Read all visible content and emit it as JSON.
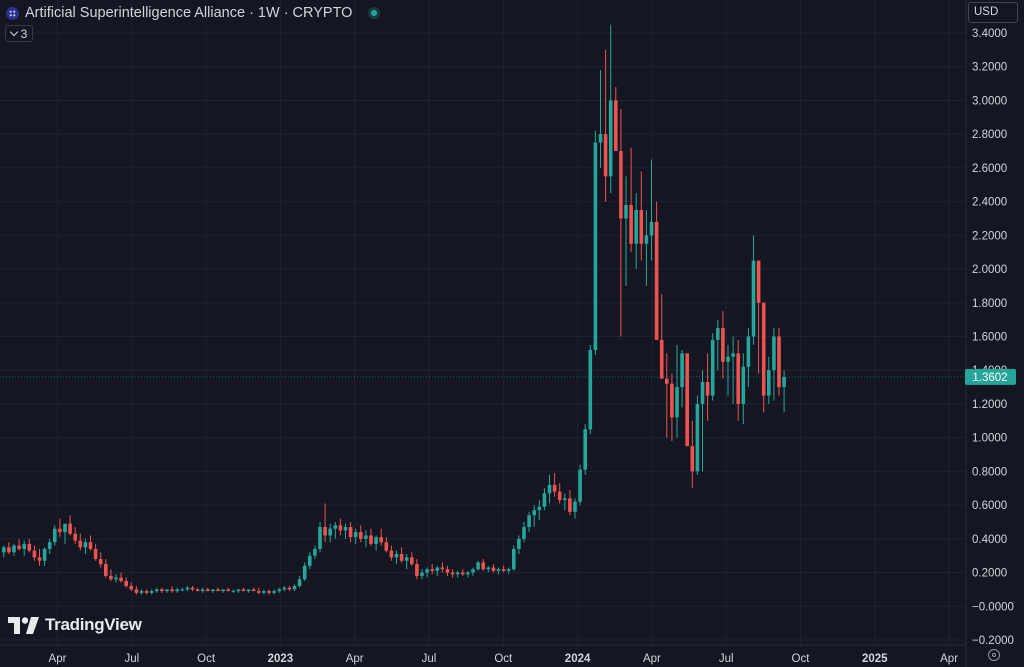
{
  "header": {
    "title": "Artificial Superintelligence Alliance · 1W · CRYPTO",
    "indicator_count": "3",
    "currency": "USD"
  },
  "branding": {
    "name": "TradingView"
  },
  "colors": {
    "up": "#26a69a",
    "down": "#ef5350",
    "background": "#141722",
    "grid": "#1e2230"
  },
  "chart_data": {
    "type": "candlestick",
    "timeframe": "1W",
    "ylim": [
      -0.2,
      3.4
    ],
    "y_ticks": [
      "3.4000",
      "3.2000",
      "3.0000",
      "2.8000",
      "2.6000",
      "2.4000",
      "2.2000",
      "2.0000",
      "1.8000",
      "1.6000",
      "1.4000",
      "1.2000",
      "1.0000",
      "0.8000",
      "0.6000",
      "0.4000",
      "0.2000",
      "−0.0000",
      "−0.2000"
    ],
    "x_ticks": [
      "Apr",
      "Jul",
      "Oct",
      "2023",
      "Apr",
      "Jul",
      "Oct",
      "2024",
      "Apr",
      "Jul",
      "Oct",
      "2025",
      "Apr"
    ],
    "last_price": "1.3602",
    "candles": [
      [
        0.32,
        0.36,
        0.29,
        0.35
      ],
      [
        0.35,
        0.38,
        0.31,
        0.32
      ],
      [
        0.32,
        0.37,
        0.3,
        0.36
      ],
      [
        0.36,
        0.4,
        0.33,
        0.34
      ],
      [
        0.34,
        0.39,
        0.3,
        0.37
      ],
      [
        0.37,
        0.4,
        0.32,
        0.33
      ],
      [
        0.33,
        0.36,
        0.27,
        0.29
      ],
      [
        0.29,
        0.34,
        0.24,
        0.27
      ],
      [
        0.27,
        0.35,
        0.24,
        0.34
      ],
      [
        0.34,
        0.4,
        0.31,
        0.38
      ],
      [
        0.38,
        0.48,
        0.36,
        0.46
      ],
      [
        0.46,
        0.52,
        0.41,
        0.44
      ],
      [
        0.44,
        0.48,
        0.37,
        0.49
      ],
      [
        0.49,
        0.54,
        0.42,
        0.43
      ],
      [
        0.43,
        0.47,
        0.37,
        0.39
      ],
      [
        0.39,
        0.43,
        0.33,
        0.35
      ],
      [
        0.35,
        0.4,
        0.31,
        0.38
      ],
      [
        0.38,
        0.42,
        0.33,
        0.34
      ],
      [
        0.34,
        0.37,
        0.27,
        0.28
      ],
      [
        0.28,
        0.32,
        0.23,
        0.25
      ],
      [
        0.25,
        0.28,
        0.17,
        0.18
      ],
      [
        0.18,
        0.22,
        0.15,
        0.16
      ],
      [
        0.16,
        0.19,
        0.14,
        0.17
      ],
      [
        0.17,
        0.2,
        0.14,
        0.15
      ],
      [
        0.15,
        0.17,
        0.11,
        0.12
      ],
      [
        0.12,
        0.14,
        0.09,
        0.1
      ],
      [
        0.1,
        0.12,
        0.07,
        0.08
      ],
      [
        0.08,
        0.1,
        0.07,
        0.09
      ],
      [
        0.09,
        0.1,
        0.07,
        0.08
      ],
      [
        0.08,
        0.1,
        0.07,
        0.09
      ],
      [
        0.09,
        0.11,
        0.08,
        0.1
      ],
      [
        0.1,
        0.11,
        0.08,
        0.09
      ],
      [
        0.09,
        0.1,
        0.08,
        0.1
      ],
      [
        0.1,
        0.12,
        0.08,
        0.09
      ],
      [
        0.09,
        0.11,
        0.08,
        0.1
      ],
      [
        0.1,
        0.11,
        0.09,
        0.1
      ],
      [
        0.1,
        0.12,
        0.09,
        0.11
      ],
      [
        0.11,
        0.12,
        0.09,
        0.1
      ],
      [
        0.1,
        0.11,
        0.09,
        0.09
      ],
      [
        0.09,
        0.11,
        0.08,
        0.1
      ],
      [
        0.1,
        0.11,
        0.09,
        0.09
      ],
      [
        0.09,
        0.1,
        0.08,
        0.1
      ],
      [
        0.1,
        0.11,
        0.09,
        0.09
      ],
      [
        0.09,
        0.1,
        0.08,
        0.1
      ],
      [
        0.1,
        0.11,
        0.09,
        0.09
      ],
      [
        0.09,
        0.1,
        0.08,
        0.09
      ],
      [
        0.09,
        0.1,
        0.08,
        0.1
      ],
      [
        0.1,
        0.11,
        0.09,
        0.09
      ],
      [
        0.09,
        0.1,
        0.08,
        0.1
      ],
      [
        0.1,
        0.11,
        0.09,
        0.09
      ],
      [
        0.09,
        0.11,
        0.07,
        0.08
      ],
      [
        0.08,
        0.1,
        0.07,
        0.09
      ],
      [
        0.09,
        0.1,
        0.07,
        0.08
      ],
      [
        0.08,
        0.1,
        0.07,
        0.09
      ],
      [
        0.09,
        0.11,
        0.08,
        0.1
      ],
      [
        0.1,
        0.12,
        0.09,
        0.11
      ],
      [
        0.11,
        0.12,
        0.09,
        0.1
      ],
      [
        0.1,
        0.13,
        0.09,
        0.12
      ],
      [
        0.12,
        0.18,
        0.11,
        0.16
      ],
      [
        0.16,
        0.26,
        0.15,
        0.24
      ],
      [
        0.24,
        0.32,
        0.22,
        0.3
      ],
      [
        0.3,
        0.36,
        0.28,
        0.34
      ],
      [
        0.34,
        0.5,
        0.32,
        0.47
      ],
      [
        0.47,
        0.61,
        0.38,
        0.42
      ],
      [
        0.42,
        0.49,
        0.38,
        0.46
      ],
      [
        0.46,
        0.5,
        0.4,
        0.48
      ],
      [
        0.48,
        0.52,
        0.42,
        0.45
      ],
      [
        0.45,
        0.49,
        0.4,
        0.47
      ],
      [
        0.47,
        0.5,
        0.38,
        0.41
      ],
      [
        0.41,
        0.46,
        0.37,
        0.44
      ],
      [
        0.44,
        0.48,
        0.38,
        0.4
      ],
      [
        0.4,
        0.45,
        0.35,
        0.42
      ],
      [
        0.42,
        0.46,
        0.36,
        0.37
      ],
      [
        0.37,
        0.42,
        0.33,
        0.41
      ],
      [
        0.41,
        0.46,
        0.36,
        0.38
      ],
      [
        0.38,
        0.41,
        0.32,
        0.33
      ],
      [
        0.33,
        0.36,
        0.27,
        0.29
      ],
      [
        0.29,
        0.33,
        0.25,
        0.31
      ],
      [
        0.31,
        0.35,
        0.26,
        0.27
      ],
      [
        0.27,
        0.31,
        0.22,
        0.29
      ],
      [
        0.29,
        0.32,
        0.24,
        0.25
      ],
      [
        0.25,
        0.28,
        0.16,
        0.18
      ],
      [
        0.18,
        0.22,
        0.16,
        0.2
      ],
      [
        0.2,
        0.23,
        0.17,
        0.22
      ],
      [
        0.22,
        0.25,
        0.19,
        0.21
      ],
      [
        0.21,
        0.24,
        0.18,
        0.23
      ],
      [
        0.23,
        0.26,
        0.2,
        0.22
      ],
      [
        0.22,
        0.24,
        0.18,
        0.2
      ],
      [
        0.2,
        0.22,
        0.17,
        0.19
      ],
      [
        0.19,
        0.21,
        0.17,
        0.2
      ],
      [
        0.2,
        0.22,
        0.18,
        0.19
      ],
      [
        0.19,
        0.21,
        0.17,
        0.2
      ],
      [
        0.2,
        0.23,
        0.18,
        0.22
      ],
      [
        0.22,
        0.27,
        0.21,
        0.26
      ],
      [
        0.26,
        0.28,
        0.21,
        0.22
      ],
      [
        0.22,
        0.24,
        0.2,
        0.23
      ],
      [
        0.23,
        0.25,
        0.2,
        0.21
      ],
      [
        0.21,
        0.23,
        0.19,
        0.22
      ],
      [
        0.22,
        0.24,
        0.2,
        0.21
      ],
      [
        0.21,
        0.23,
        0.19,
        0.22
      ],
      [
        0.22,
        0.36,
        0.21,
        0.34
      ],
      [
        0.34,
        0.42,
        0.31,
        0.4
      ],
      [
        0.4,
        0.5,
        0.38,
        0.47
      ],
      [
        0.47,
        0.56,
        0.44,
        0.54
      ],
      [
        0.54,
        0.6,
        0.47,
        0.57
      ],
      [
        0.57,
        0.63,
        0.51,
        0.59
      ],
      [
        0.59,
        0.7,
        0.57,
        0.67
      ],
      [
        0.67,
        0.78,
        0.61,
        0.72
      ],
      [
        0.72,
        0.79,
        0.65,
        0.68
      ],
      [
        0.68,
        0.73,
        0.61,
        0.63
      ],
      [
        0.63,
        0.67,
        0.57,
        0.64
      ],
      [
        0.64,
        0.69,
        0.54,
        0.56
      ],
      [
        0.56,
        0.64,
        0.52,
        0.62
      ],
      [
        0.62,
        0.84,
        0.6,
        0.81
      ],
      [
        0.81,
        1.08,
        0.78,
        1.05
      ],
      [
        1.05,
        1.55,
        1.02,
        1.52
      ],
      [
        1.52,
        2.82,
        1.49,
        2.75
      ],
      [
        2.75,
        3.18,
        2.6,
        2.8
      ],
      [
        2.8,
        3.3,
        2.4,
        2.55
      ],
      [
        2.55,
        3.45,
        2.45,
        3.0
      ],
      [
        3.0,
        3.08,
        2.7,
        2.7
      ],
      [
        2.7,
        2.95,
        1.6,
        2.3
      ],
      [
        2.3,
        2.55,
        1.9,
        2.38
      ],
      [
        2.38,
        2.72,
        2.1,
        2.15
      ],
      [
        2.15,
        2.45,
        2.0,
        2.35
      ],
      [
        2.35,
        2.58,
        2.05,
        2.15
      ],
      [
        2.15,
        2.35,
        1.9,
        2.2
      ],
      [
        2.2,
        2.65,
        2.05,
        2.28
      ],
      [
        2.28,
        2.4,
        1.58,
        1.58
      ],
      [
        1.58,
        1.85,
        1.38,
        1.35
      ],
      [
        1.35,
        1.5,
        1.0,
        1.32
      ],
      [
        1.32,
        1.38,
        0.98,
        1.12
      ],
      [
        1.12,
        1.55,
        1.0,
        1.3
      ],
      [
        1.3,
        1.52,
        1.18,
        1.5
      ],
      [
        1.5,
        1.5,
        0.95,
        0.95
      ],
      [
        0.95,
        1.1,
        0.7,
        0.8
      ],
      [
        0.8,
        1.25,
        0.78,
        1.2
      ],
      [
        1.2,
        1.4,
        0.8,
        1.33
      ],
      [
        1.33,
        1.5,
        1.1,
        1.25
      ],
      [
        1.25,
        1.62,
        1.22,
        1.58
      ],
      [
        1.58,
        1.7,
        1.4,
        1.65
      ],
      [
        1.65,
        1.75,
        1.35,
        1.45
      ],
      [
        1.45,
        1.55,
        1.25,
        1.48
      ],
      [
        1.48,
        1.6,
        1.2,
        1.5
      ],
      [
        1.5,
        1.58,
        1.1,
        1.2
      ],
      [
        1.2,
        1.5,
        1.08,
        1.42
      ],
      [
        1.42,
        1.65,
        1.3,
        1.6
      ],
      [
        1.6,
        2.2,
        1.55,
        2.05
      ],
      [
        2.05,
        2.05,
        1.38,
        1.8
      ],
      [
        1.8,
        1.8,
        1.15,
        1.25
      ],
      [
        1.25,
        1.48,
        1.2,
        1.4
      ],
      [
        1.4,
        1.65,
        1.22,
        1.6
      ],
      [
        1.6,
        1.65,
        1.25,
        1.3
      ],
      [
        1.3,
        1.4,
        1.15,
        1.36
      ]
    ]
  }
}
